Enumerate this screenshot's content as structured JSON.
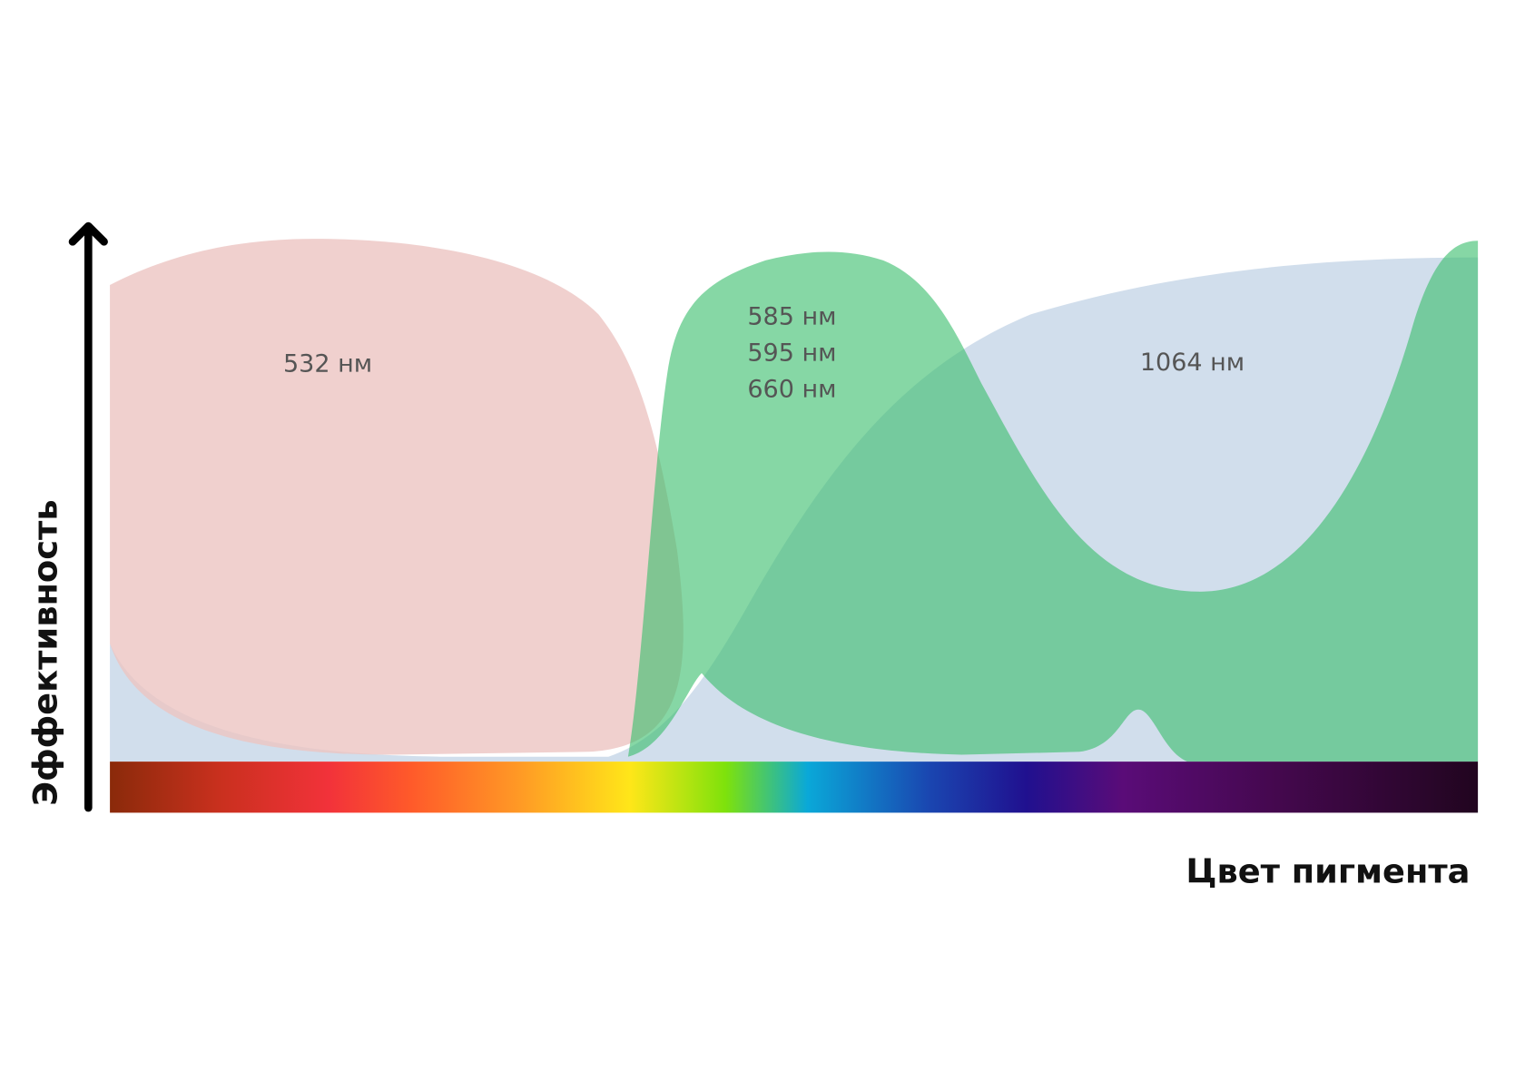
{
  "y_axis_label": "Эффективность",
  "x_axis_label": "Цвет пигмента",
  "curves": [
    {
      "labels": [
        "532 нм"
      ]
    },
    {
      "labels": [
        "585 нм",
        "595 нм",
        "660 нм"
      ]
    },
    {
      "labels": [
        "1064 нм"
      ]
    }
  ]
}
